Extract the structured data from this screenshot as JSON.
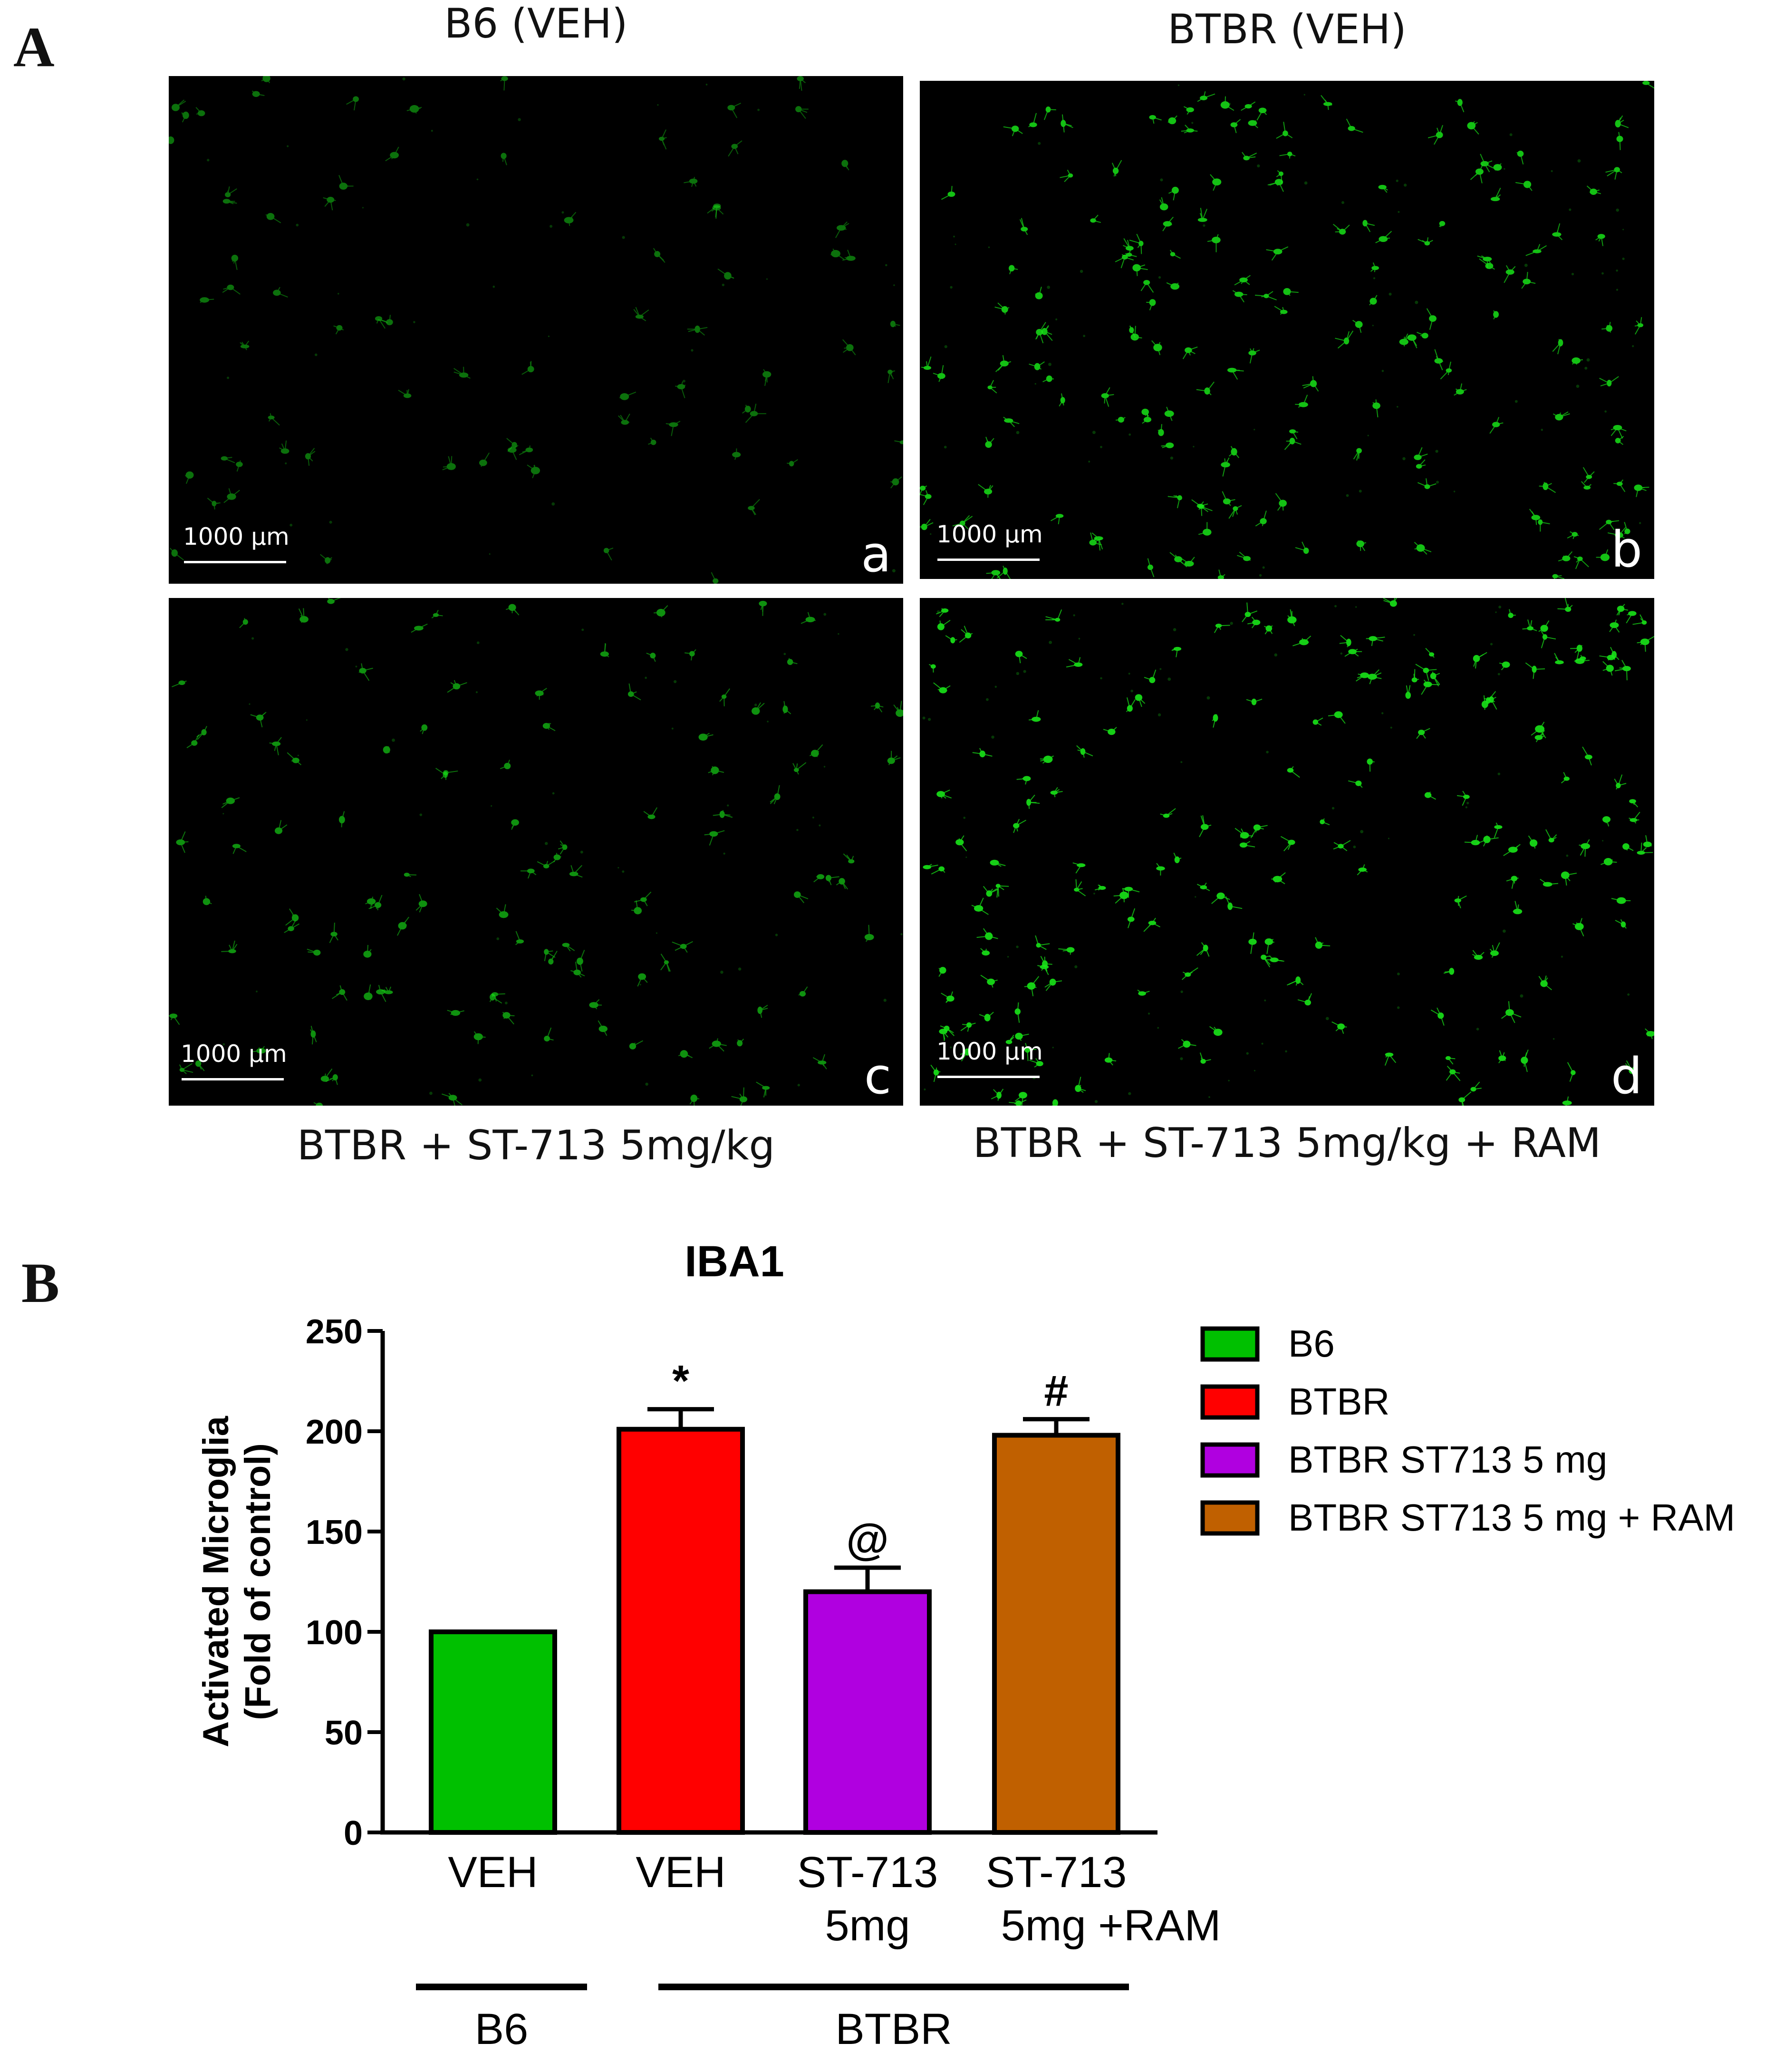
{
  "panelA": {
    "letter": "A",
    "scale_label": "1000 µm",
    "images": [
      {
        "title": "B6 (VEH)",
        "corner": "a",
        "cell_density": 0.25
      },
      {
        "title": "BTBR (VEH)",
        "corner": "b",
        "cell_density": 0.9
      },
      {
        "title": "BTBR + ST-713 5mg/kg",
        "corner": "c",
        "cell_density": 0.5
      },
      {
        "title": "BTBR + ST-713 5mg/kg + RAM",
        "corner": "d",
        "cell_density": 1.0
      }
    ],
    "fluorescence_color": "#19e619"
  },
  "panelB": {
    "letter": "B",
    "chart_data": {
      "type": "bar",
      "title": "IBA1",
      "ylabel_lines": [
        "Activated Microglia",
        "(Fold of control)"
      ],
      "ylim": [
        0,
        250
      ],
      "yticks": [
        0,
        50,
        100,
        150,
        200,
        250
      ],
      "category_labels": [
        [
          "VEH"
        ],
        [
          "VEH"
        ],
        [
          "ST-713",
          "5mg"
        ],
        [
          "ST-713",
          "5mg +RAM"
        ]
      ],
      "values": [
        100,
        201,
        120,
        198
      ],
      "errors": [
        0,
        10,
        12,
        8
      ],
      "colors": [
        "#00c000",
        "#ff0000",
        "#b000e0",
        "#c06000"
      ],
      "annotations": [
        "",
        "*",
        "@",
        "#"
      ],
      "legend": [
        "B6",
        "BTBR",
        "BTBR ST713 5 mg",
        "BTBR ST713 5 mg + RAM"
      ],
      "legend_position": "right",
      "groups": [
        {
          "label": "B6",
          "bars": [
            0,
            0
          ]
        },
        {
          "label": "BTBR",
          "bars": [
            1,
            3
          ]
        }
      ]
    }
  }
}
